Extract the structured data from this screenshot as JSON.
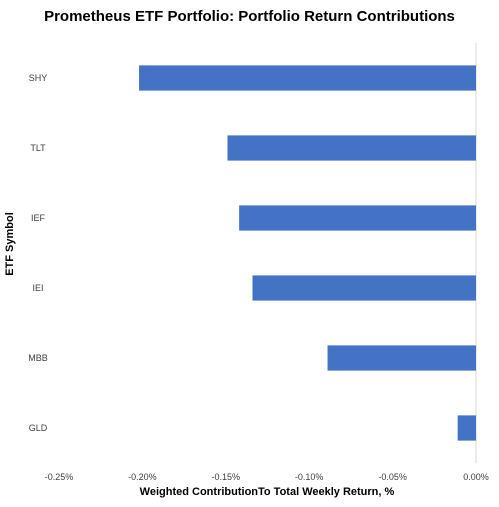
{
  "chart_data": {
    "type": "bar",
    "orientation": "horizontal",
    "title": "Prometheus ETF Portfolio: Portfolio Return Contributions",
    "xlabel": "Weighted ContributionTo Total Weekly Return, %",
    "ylabel": "ETF Symbol",
    "categories": [
      "SHY",
      "TLT",
      "IEF",
      "IEI",
      "MBB",
      "GLD"
    ],
    "values": [
      -0.202,
      -0.149,
      -0.142,
      -0.134,
      -0.089,
      -0.011
    ],
    "xlim": [
      -0.25,
      0.0
    ],
    "x_ticks": [
      -0.25,
      -0.2,
      -0.15,
      -0.1,
      -0.05,
      0.0
    ],
    "x_tick_labels": [
      "-0.25%",
      "-0.20%",
      "-0.15%",
      "-0.10%",
      "-0.05%",
      "0.00%"
    ],
    "value_unit": "%",
    "bar_color": "#4472C4",
    "axis_line_color": "#D9D9D9",
    "grid": false,
    "legend": "none"
  }
}
